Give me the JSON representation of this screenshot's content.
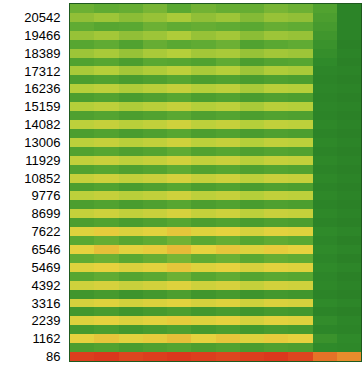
{
  "chart_data": {
    "type": "heatmap",
    "tick_labels": "y",
    "x": [
      0,
      1,
      2,
      3,
      4,
      5,
      6,
      7,
      8,
      9,
      10,
      11
    ],
    "xlim": [
      -0.5,
      11.5
    ],
    "y": [
      86,
      624,
      1162,
      1700,
      2239,
      2777,
      3316,
      3854,
      4392,
      4930,
      5469,
      6007,
      6546,
      7084,
      7622,
      8160,
      8699,
      9237,
      9776,
      10314,
      10852,
      11390,
      11929,
      12467,
      13006,
      13544,
      14082,
      14620,
      15159,
      15697,
      16236,
      16774,
      17312,
      17850,
      18389,
      18927,
      19466,
      20004,
      20542,
      21080
    ],
    "ylim": [
      -180,
      21350
    ],
    "yticks": [
      86,
      1162,
      2239,
      3316,
      4392,
      5469,
      6546,
      7622,
      8699,
      9776,
      10852,
      11929,
      13006,
      14082,
      15159,
      16236,
      17312,
      18389,
      19466,
      20542
    ],
    "zlim": [
      0,
      100
    ],
    "cells": [
      [
        96,
        97,
        95,
        96,
        97,
        96,
        95,
        96,
        97,
        95,
        88,
        84
      ],
      [
        40,
        42,
        39,
        41,
        43,
        40,
        42,
        39,
        41,
        40,
        30,
        29
      ],
      [
        72,
        74,
        71,
        73,
        75,
        72,
        74,
        70,
        73,
        72,
        34,
        30
      ],
      [
        38,
        40,
        37,
        39,
        41,
        38,
        40,
        37,
        39,
        38,
        28,
        27
      ],
      [
        70,
        72,
        69,
        71,
        73,
        70,
        72,
        68,
        71,
        70,
        31,
        28
      ],
      [
        37,
        39,
        36,
        38,
        40,
        37,
        39,
        36,
        38,
        37,
        27,
        26
      ],
      [
        68,
        70,
        67,
        69,
        71,
        68,
        70,
        66,
        69,
        68,
        30,
        28
      ],
      [
        36,
        38,
        35,
        37,
        40,
        36,
        38,
        35,
        37,
        36,
        27,
        26
      ],
      [
        66,
        68,
        65,
        67,
        70,
        66,
        68,
        64,
        67,
        66,
        29,
        27
      ],
      [
        44,
        46,
        43,
        45,
        48,
        44,
        46,
        43,
        45,
        44,
        28,
        26
      ],
      [
        70,
        72,
        69,
        71,
        74,
        70,
        72,
        68,
        71,
        70,
        30,
        28
      ],
      [
        46,
        48,
        45,
        47,
        50,
        46,
        48,
        45,
        47,
        46,
        28,
        26
      ],
      [
        72,
        75,
        71,
        73,
        76,
        72,
        74,
        70,
        73,
        72,
        30,
        28
      ],
      [
        45,
        47,
        44,
        46,
        49,
        45,
        47,
        44,
        46,
        45,
        28,
        26
      ],
      [
        70,
        73,
        69,
        71,
        74,
        70,
        72,
        68,
        71,
        70,
        30,
        28
      ],
      [
        40,
        42,
        39,
        41,
        44,
        40,
        42,
        39,
        41,
        40,
        27,
        26
      ],
      [
        64,
        66,
        63,
        65,
        68,
        64,
        66,
        62,
        65,
        64,
        29,
        27
      ],
      [
        40,
        42,
        39,
        41,
        44,
        40,
        42,
        39,
        41,
        40,
        27,
        26
      ],
      [
        62,
        64,
        61,
        63,
        66,
        62,
        64,
        60,
        63,
        62,
        29,
        27
      ],
      [
        40,
        42,
        39,
        41,
        44,
        40,
        42,
        39,
        41,
        40,
        27,
        26
      ],
      [
        64,
        66,
        63,
        65,
        68,
        64,
        66,
        62,
        65,
        64,
        29,
        27
      ],
      [
        42,
        44,
        41,
        43,
        46,
        42,
        44,
        41,
        43,
        42,
        27,
        26
      ],
      [
        63,
        65,
        62,
        64,
        67,
        63,
        65,
        61,
        64,
        63,
        29,
        27
      ],
      [
        42,
        44,
        41,
        43,
        46,
        42,
        44,
        41,
        43,
        42,
        27,
        26
      ],
      [
        62,
        64,
        61,
        63,
        66,
        62,
        64,
        60,
        63,
        62,
        29,
        27
      ],
      [
        40,
        42,
        39,
        41,
        44,
        40,
        42,
        39,
        41,
        40,
        27,
        26
      ],
      [
        62,
        64,
        61,
        63,
        66,
        62,
        64,
        60,
        63,
        62,
        29,
        27
      ],
      [
        41,
        43,
        40,
        42,
        45,
        41,
        43,
        40,
        42,
        41,
        27,
        26
      ],
      [
        60,
        62,
        59,
        61,
        64,
        60,
        62,
        58,
        61,
        60,
        28,
        27
      ],
      [
        40,
        42,
        39,
        41,
        44,
        40,
        42,
        39,
        41,
        40,
        27,
        26
      ],
      [
        60,
        62,
        59,
        61,
        64,
        60,
        62,
        58,
        61,
        60,
        28,
        27
      ],
      [
        40,
        42,
        39,
        41,
        44,
        40,
        42,
        39,
        41,
        40,
        27,
        26
      ],
      [
        58,
        60,
        57,
        59,
        62,
        58,
        60,
        56,
        59,
        58,
        28,
        27
      ],
      [
        42,
        44,
        40,
        45,
        44,
        42,
        46,
        40,
        43,
        44,
        30,
        26
      ],
      [
        56,
        58,
        55,
        58,
        60,
        57,
        58,
        55,
        57,
        56,
        32,
        27
      ],
      [
        44,
        46,
        42,
        47,
        45,
        46,
        48,
        42,
        45,
        46,
        34,
        26
      ],
      [
        55,
        57,
        54,
        56,
        59,
        55,
        57,
        53,
        56,
        55,
        36,
        27
      ],
      [
        46,
        44,
        45,
        48,
        46,
        47,
        46,
        45,
        47,
        46,
        38,
        27
      ],
      [
        54,
        56,
        53,
        55,
        58,
        54,
        56,
        52,
        55,
        54,
        40,
        27
      ],
      [
        48,
        46,
        47,
        50,
        45,
        49,
        47,
        47,
        50,
        48,
        42,
        27
      ]
    ]
  }
}
